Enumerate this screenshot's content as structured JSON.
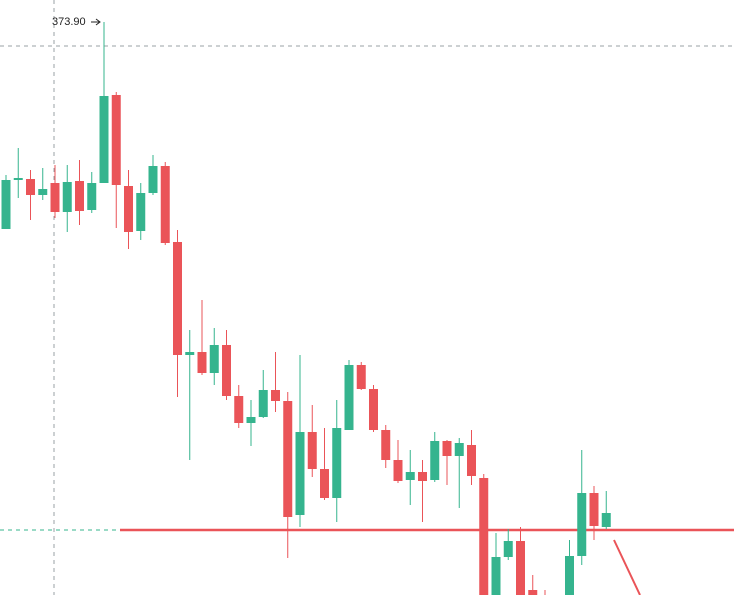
{
  "chart_data": {
    "type": "candlestick",
    "annotation": "373.90",
    "ylim": [
      316.6,
      376.1
    ],
    "up_color": "#35b48e",
    "down_color": "#ea5458",
    "open": [
      353.2,
      358.1,
      358.2,
      356.6,
      357.8,
      354.9,
      358.0,
      355.1,
      357.8,
      366.6,
      357.5,
      353.0,
      356.8,
      359.5,
      351.9,
      340.6,
      340.9,
      338.8,
      341.6,
      336.5,
      333.8,
      334.4,
      337.1,
      336.0,
      324.6,
      332.9,
      329.2,
      326.3,
      333.1,
      339.6,
      337.2,
      333.1,
      330.1,
      328.1,
      328.9,
      328.1,
      332.0,
      330.5,
      331.6,
      328.3,
      316.1,
      320.4,
      322.0,
      317.1,
      316.3,
      null,
      316.1,
      320.5,
      326.8,
      323.4
    ],
    "high": [
      358.6,
      361.3,
      359.1,
      359.3,
      359.6,
      359.6,
      360.1,
      358.9,
      373.9,
      366.9,
      359.1,
      357.8,
      360.6,
      359.9,
      353.1,
      343.1,
      346.1,
      343.3,
      343.1,
      337.6,
      336.1,
      339.1,
      340.9,
      336.9,
      340.6,
      335.6,
      333.3,
      336.1,
      340.1,
      339.9,
      337.6,
      333.6,
      332.1,
      331.1,
      330.1,
      332.9,
      332.1,
      332.3,
      333.1,
      328.7,
      322.8,
      323.2,
      323.4,
      318.6,
      317.1,
      null,
      322.1,
      331.1,
      327.5,
      327.0
    ],
    "low": [
      353.2,
      356.3,
      354.1,
      356.1,
      354.3,
      352.9,
      353.6,
      354.8,
      357.8,
      353.3,
      351.2,
      352.1,
      356.6,
      351.6,
      336.4,
      330.1,
      338.6,
      337.6,
      336.1,
      333.3,
      331.5,
      334.3,
      334.9,
      320.3,
      323.4,
      328.4,
      326.1,
      323.9,
      333.1,
      337.1,
      332.9,
      329.3,
      327.8,
      325.6,
      323.9,
      327.9,
      327.6,
      325.3,
      327.6,
      316.1,
      316.1,
      320.1,
      316.1,
      316.1,
      316.1,
      null,
      316.1,
      319.6,
      322.1,
      323.2
    ],
    "close": [
      358.1,
      358.3,
      356.6,
      357.2,
      354.9,
      357.9,
      355.0,
      357.8,
      366.5,
      357.6,
      352.9,
      356.8,
      359.5,
      351.8,
      340.6,
      340.9,
      338.8,
      341.6,
      336.5,
      333.8,
      334.4,
      337.1,
      336.0,
      324.4,
      332.9,
      329.2,
      326.3,
      333.3,
      339.6,
      337.2,
      333.1,
      330.1,
      328.0,
      328.9,
      328.0,
      332.0,
      330.5,
      331.8,
      328.5,
      316.1,
      320.4,
      322.0,
      316.1,
      316.1,
      316.1,
      null,
      320.5,
      326.8,
      323.5,
      324.8
    ],
    "level": 323.1,
    "level_color": "#ea5458"
  }
}
